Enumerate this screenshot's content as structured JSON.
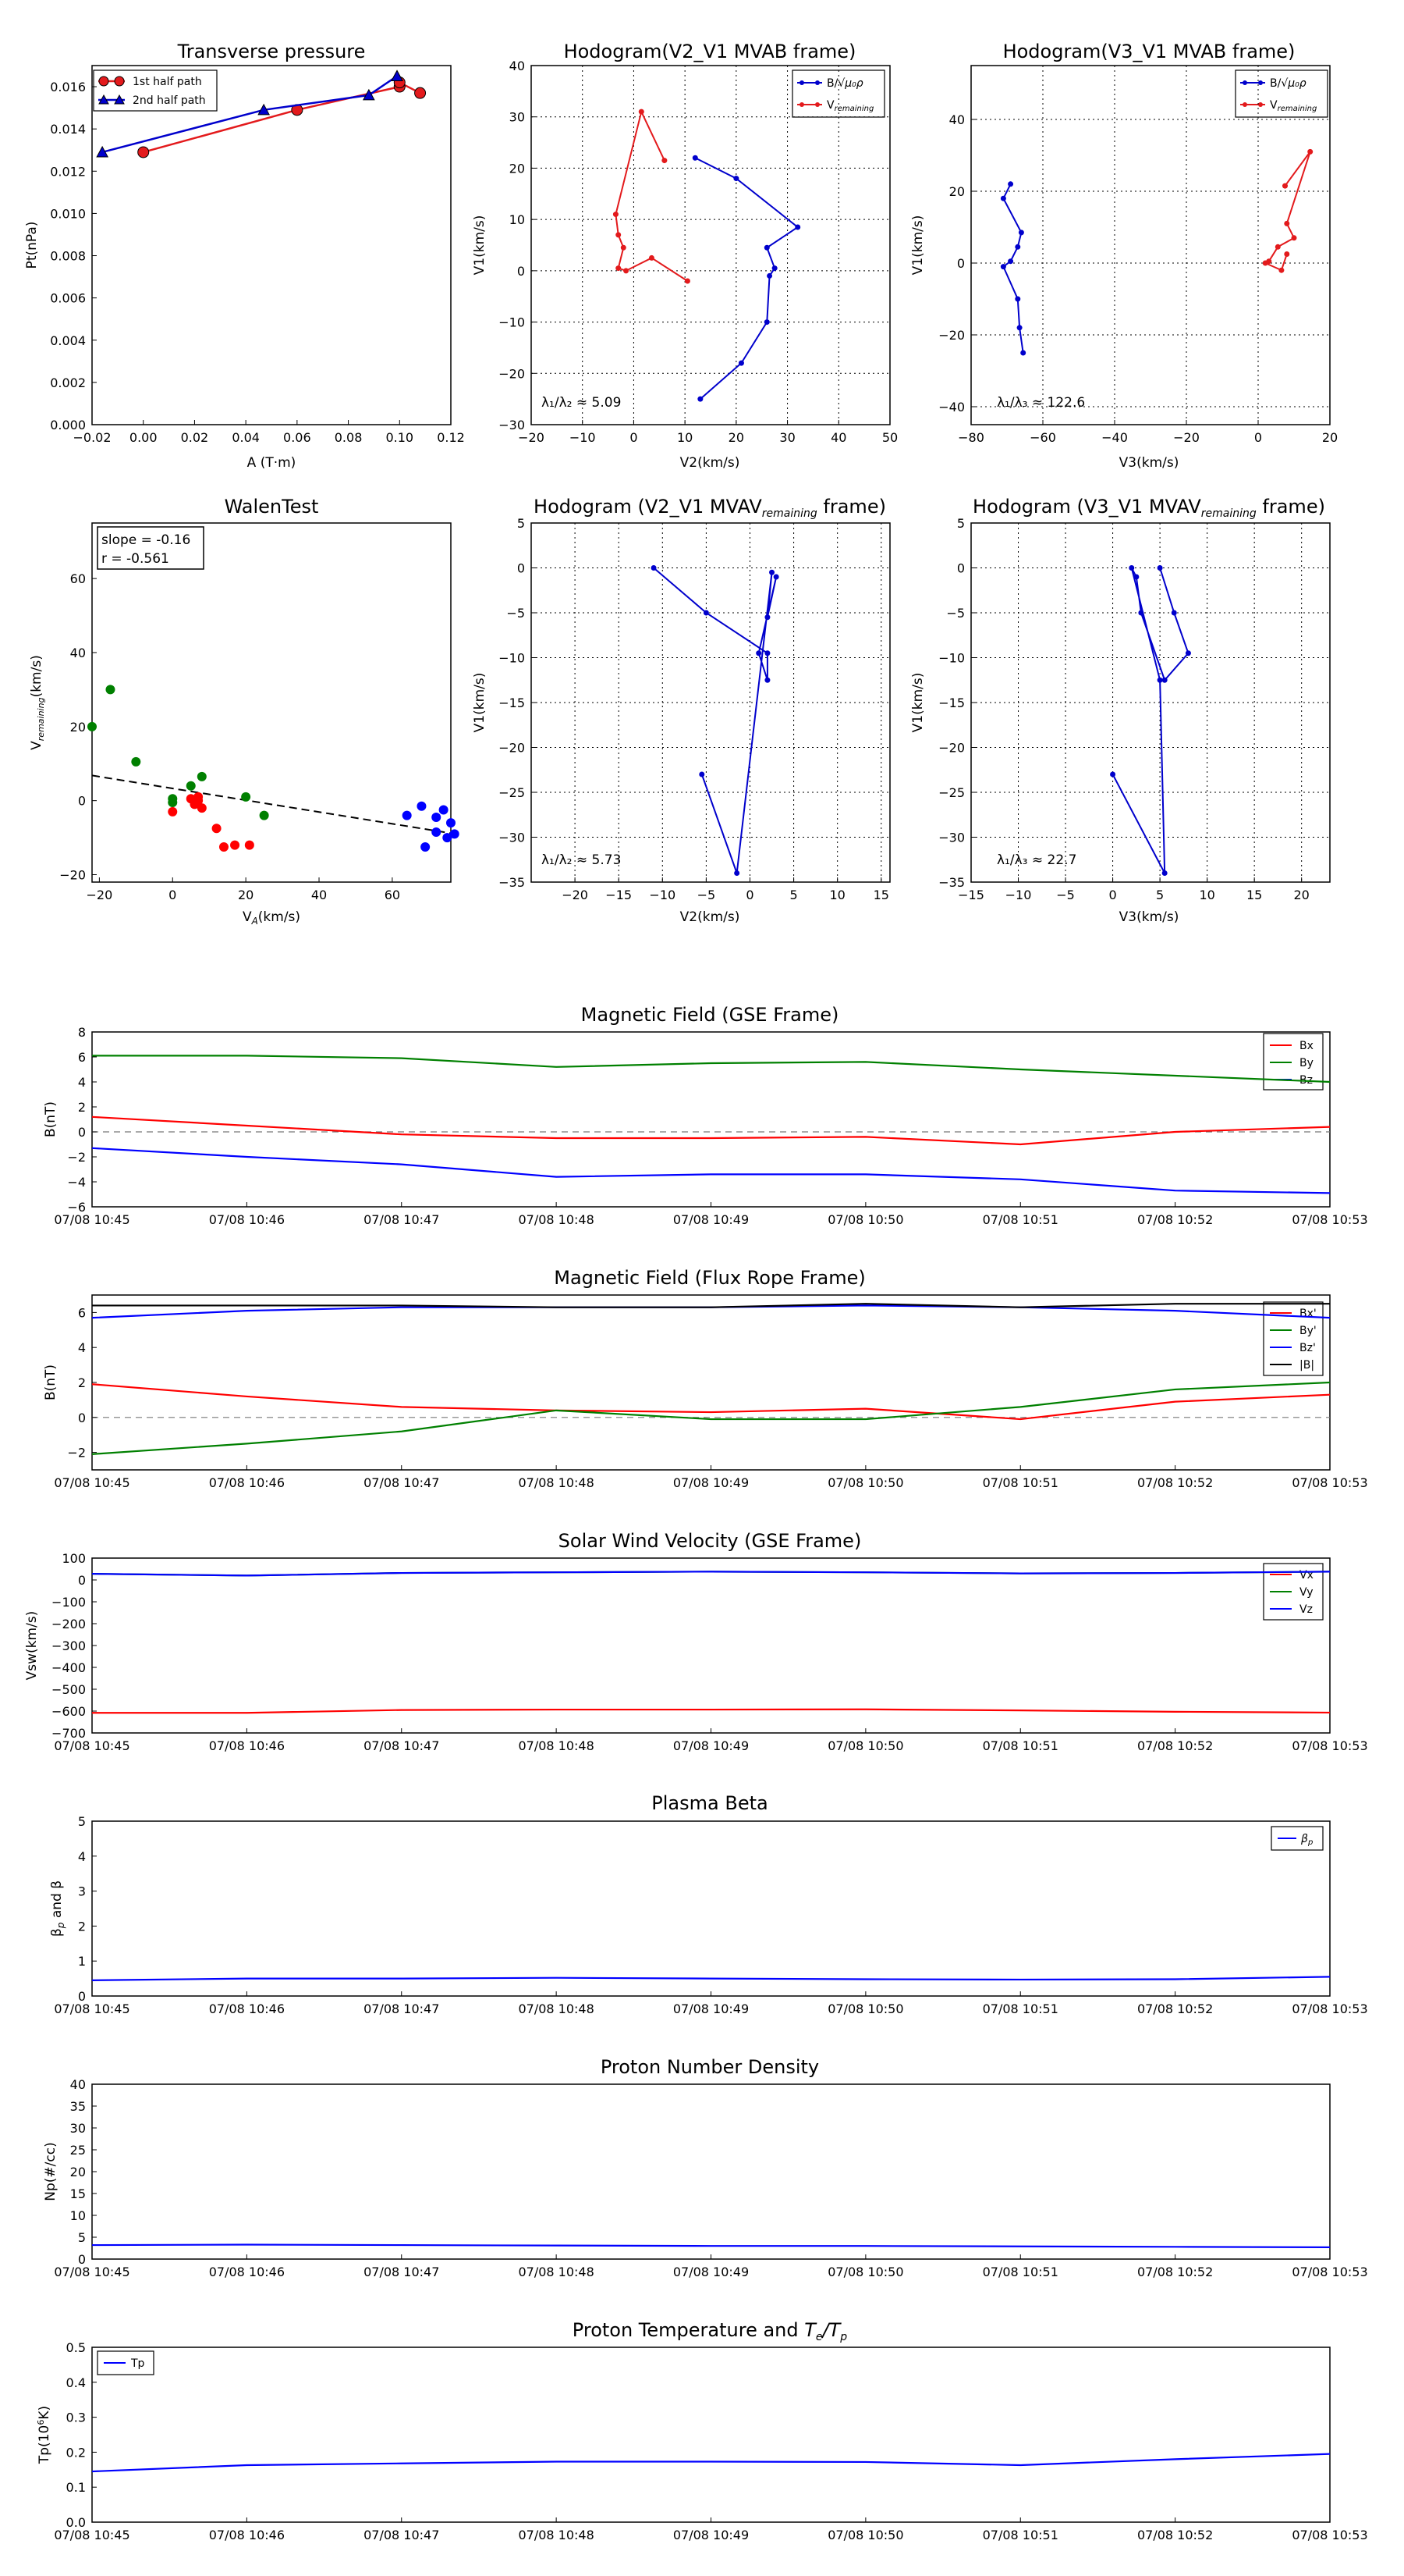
{
  "figure": {
    "background": "#ffffff"
  },
  "panels": {
    "transverse_pressure": {
      "title": "Transverse pressure",
      "xlabel": "A (T·m)",
      "ylabel": "Pt(nPa)",
      "xticks": [
        "−0.02",
        "0.00",
        "0.02",
        "0.04",
        "0.06",
        "0.08",
        "0.10",
        "0.12"
      ],
      "yticks": [
        "0.000",
        "0.002",
        "0.004",
        "0.006",
        "0.008",
        "0.010",
        "0.012",
        "0.014",
        "0.016"
      ],
      "legend": [
        "1st half path",
        "2nd half path"
      ]
    },
    "hodo_v2": {
      "title": "Hodogram(V2_V1 MVAB frame)",
      "xlabel": "V2(km/s)",
      "ylabel": "V1(km/s)",
      "xticks": [
        "−20",
        "−10",
        "0",
        "10",
        "20",
        "30",
        "40",
        "50"
      ],
      "yticks": [
        "−30",
        "−20",
        "−10",
        "0",
        "10",
        "20",
        "30",
        "40"
      ],
      "legend": [
        "B/√μ₀ρ",
        "V_remaining"
      ],
      "annotation": "λ₁/λ₂ ≈ 5.09"
    },
    "hodo_v3": {
      "title": "Hodogram(V3_V1 MVAB frame)",
      "xlabel": "V3(km/s)",
      "ylabel": "V1(km/s)",
      "xticks": [
        "−80",
        "−60",
        "−40",
        "−20",
        "0",
        "20"
      ],
      "yticks": [
        "−40",
        "−20",
        "0",
        "20",
        "40"
      ],
      "legend": [
        "B/√μ₀ρ",
        "V_remaining"
      ],
      "annotation": "λ₁/λ₃ ≈ 122.6"
    },
    "walen": {
      "title": "WalenTest",
      "xlabel": "V_A(km/s)",
      "ylabel": "V_remaining(km/s)",
      "xticks": [
        "−20",
        "0",
        "20",
        "40",
        "60"
      ],
      "yticks": [
        "−20",
        "0",
        "20",
        "40",
        "60"
      ],
      "slope_text": "slope = -0.16",
      "r_text": "r = -0.561"
    },
    "hodo_v2_rem": {
      "title": "Hodogram (V2_V1 MVAV_remaining frame)",
      "xlabel": "V2(km/s)",
      "ylabel": "V1(km/s)",
      "xticks": [
        "−20",
        "−15",
        "−10",
        "−5",
        "0",
        "5",
        "10",
        "15"
      ],
      "yticks": [
        "−35",
        "−30",
        "−25",
        "−20",
        "−15",
        "−10",
        "−5",
        "0",
        "5"
      ],
      "annotation": "λ₁/λ₂ ≈ 5.73"
    },
    "hodo_v3_rem": {
      "title": "Hodogram (V3_V1 MVAV_remaining frame)",
      "xlabel": "V3(km/s)",
      "ylabel": "V1(km/s)",
      "xticks": [
        "−15",
        "−10",
        "−5",
        "0",
        "5",
        "10",
        "15",
        "20"
      ],
      "yticks": [
        "−35",
        "−30",
        "−25",
        "−20",
        "−15",
        "−10",
        "−5",
        "0",
        "5"
      ],
      "annotation": "λ₁/λ₃ ≈ 22.7"
    }
  },
  "time_axis": {
    "ticks": [
      "07/08 10:45",
      "07/08 10:46",
      "07/08 10:47",
      "07/08 10:48",
      "07/08 10:49",
      "07/08 10:50",
      "07/08 10:51",
      "07/08 10:52",
      "07/08 10:53"
    ]
  },
  "timeseries": {
    "mag_gse": {
      "title": "Magnetic Field (GSE Frame)",
      "ylabel": "B(nT)",
      "yticks": [
        "−6",
        "−4",
        "−2",
        "0",
        "2",
        "4",
        "6",
        "8"
      ],
      "legend": [
        "Bx",
        "By",
        "Bz"
      ]
    },
    "mag_fr": {
      "title": "Magnetic Field (Flux Rope Frame)",
      "ylabel": "B(nT)",
      "yticks": [
        "−2",
        "0",
        "2",
        "4",
        "6"
      ],
      "legend": [
        "Bx'",
        "By'",
        "Bz'",
        "|B|"
      ]
    },
    "vsw": {
      "title": "Solar Wind Velocity (GSE Frame)",
      "ylabel": "Vsw(km/s)",
      "yticks": [
        "−700",
        "−600",
        "−500",
        "−400",
        "−300",
        "−200",
        "−100",
        "0",
        "100"
      ],
      "legend": [
        "Vx",
        "Vy",
        "Vz"
      ]
    },
    "beta": {
      "title": "Plasma Beta",
      "ylabel": "βp and β",
      "yticks": [
        "0",
        "1",
        "2",
        "3",
        "4",
        "5"
      ],
      "legend": [
        "βp"
      ]
    },
    "np": {
      "title": "Proton Number Density",
      "ylabel": "Np(#/cc)",
      "yticks": [
        "0",
        "5",
        "10",
        "15",
        "20",
        "25",
        "30",
        "35",
        "40"
      ]
    },
    "tp": {
      "title": "Proton Temperature and Te/Tp",
      "ylabel": "Tp(10⁶K)",
      "yticks": [
        "0.0",
        "0.1",
        "0.2",
        "0.3",
        "0.4",
        "0.5"
      ],
      "legend": [
        "Tp"
      ]
    }
  },
  "chart_data": [
    {
      "type": "line",
      "title": "Transverse pressure",
      "xlabel": "A (T·m)",
      "ylabel": "Pt(nPa)",
      "xlim": [
        -0.02,
        0.12
      ],
      "ylim": [
        0.0,
        0.017
      ],
      "series": [
        {
          "name": "1st half path",
          "color": "#e31a1c",
          "marker": "circle",
          "x": [
            0.0,
            0.06,
            0.1,
            0.1,
            0.108
          ],
          "y": [
            0.0129,
            0.0149,
            0.016,
            0.0162,
            0.0157
          ]
        },
        {
          "name": "2nd half path",
          "color": "#0000cc",
          "marker": "triangle",
          "x": [
            -0.016,
            0.047,
            0.088,
            0.099,
            0.099
          ],
          "y": [
            0.0129,
            0.0149,
            0.0156,
            0.0165,
            0.0165
          ]
        }
      ],
      "legend_position": "top-left"
    },
    {
      "type": "line",
      "title": "Hodogram(V2_V1 MVAB frame)",
      "xlabel": "V2(km/s)",
      "ylabel": "V1(km/s)",
      "xlim": [
        -20,
        50
      ],
      "ylim": [
        -30,
        40
      ],
      "grid": true,
      "series": [
        {
          "name": "B/√μ₀ρ",
          "color": "#0000cc",
          "x": [
            12,
            20,
            32,
            26,
            27.5,
            26.5,
            26,
            21,
            13
          ],
          "y": [
            22,
            18,
            8.5,
            4.5,
            0.5,
            -1,
            -10,
            -18,
            -25
          ]
        },
        {
          "name": "V_remaining",
          "color": "#e31a1c",
          "x": [
            6,
            1.5,
            -3.5,
            -3,
            -2,
            -3,
            -1.5,
            3.5,
            10.5
          ],
          "y": [
            21.5,
            31,
            11,
            7,
            4.5,
            0.5,
            0,
            2.5,
            -2
          ]
        }
      ],
      "legend_position": "top-right",
      "annotation": "λ₁/λ₂ ≈ 5.09"
    },
    {
      "type": "line",
      "title": "Hodogram(V3_V1 MVAB frame)",
      "xlabel": "V3(km/s)",
      "ylabel": "V1(km/s)",
      "xlim": [
        -80,
        20
      ],
      "ylim": [
        -45,
        55
      ],
      "grid": true,
      "series": [
        {
          "name": "B/√μ₀ρ",
          "color": "#0000cc",
          "x": [
            -69,
            -71,
            -66,
            -67,
            -69,
            -71,
            -67,
            -66.5,
            -65.5
          ],
          "y": [
            22,
            18,
            8.5,
            4.5,
            0.5,
            -1,
            -10,
            -18,
            -25
          ]
        },
        {
          "name": "V_remaining",
          "color": "#e31a1c",
          "x": [
            7.5,
            14.5,
            8,
            10,
            5.5,
            3,
            2,
            6.5,
            8
          ],
          "y": [
            21.5,
            31,
            11,
            7,
            4.5,
            0.5,
            0,
            -2,
            2.5
          ]
        }
      ],
      "legend_position": "top-right",
      "annotation": "λ₁/λ₃ ≈ 122.6"
    },
    {
      "type": "scatter",
      "title": "WalenTest",
      "xlabel": "V_A(km/s)",
      "ylabel": "V_remaining(km/s)",
      "xlim": [
        -22,
        76
      ],
      "ylim": [
        -22,
        75
      ],
      "series": [
        {
          "name": "",
          "color": "#008000",
          "x": [
            -22,
            -17,
            -10,
            0,
            0,
            5,
            8,
            20,
            25
          ],
          "y": [
            20,
            30,
            10.5,
            0.5,
            -0.5,
            4,
            6.5,
            1,
            -4
          ]
        },
        {
          "name": "",
          "color": "#ff0000",
          "x": [
            0,
            5,
            6,
            7,
            7,
            8,
            12,
            14,
            17,
            21
          ],
          "y": [
            -3,
            0.5,
            -1,
            1,
            0,
            -2,
            -7.5,
            -12.5,
            -12,
            -12
          ]
        },
        {
          "name": "",
          "color": "#0000ff",
          "x": [
            64,
            68,
            69,
            72,
            72,
            74,
            75,
            76,
            77
          ],
          "y": [
            -4,
            -1.5,
            -12.5,
            -4.5,
            -8.5,
            -2.5,
            -10,
            -6,
            -9
          ]
        }
      ],
      "fit_line": {
        "x": [
          -22,
          76
        ],
        "y": [
          6.8,
          -8.8
        ],
        "style": "dashed"
      },
      "annotations": [
        "slope = -0.16",
        "r = -0.561"
      ]
    },
    {
      "type": "line",
      "title": "Hodogram (V2_V1 MVAV_remaining frame)",
      "xlabel": "V2(km/s)",
      "ylabel": "V1(km/s)",
      "xlim": [
        -25,
        16
      ],
      "ylim": [
        -35,
        5
      ],
      "grid": true,
      "series": [
        {
          "name": "",
          "color": "#0000cc",
          "x": [
            -11,
            -5,
            2,
            2,
            1,
            3,
            2,
            2.5,
            -1.5,
            -5.5
          ],
          "y": [
            0,
            -5,
            -9.5,
            -12.5,
            -9.5,
            -1,
            -5.5,
            -0.5,
            -34,
            -23
          ]
        }
      ],
      "annotation": "λ₁/λ₂ ≈ 5.73"
    },
    {
      "type": "line",
      "title": "Hodogram (V3_V1 MVAV_remaining frame)",
      "xlabel": "V3(km/s)",
      "ylabel": "V1(km/s)",
      "xlim": [
        -15,
        23
      ],
      "ylim": [
        -35,
        5
      ],
      "grid": true,
      "series": [
        {
          "name": "",
          "color": "#0000cc",
          "x": [
            5,
            6.5,
            8,
            5.5,
            3,
            2.5,
            2,
            5,
            5.5,
            0
          ],
          "y": [
            0,
            -5,
            -9.5,
            -12.5,
            -5,
            -1,
            0,
            -12.5,
            -34,
            -23
          ]
        }
      ],
      "annotation": "λ₁/λ₃ ≈ 22.7"
    },
    {
      "type": "line",
      "title": "Magnetic Field (GSE Frame)",
      "x": [
        "10:45",
        "10:46",
        "10:47",
        "10:48",
        "10:49",
        "10:50",
        "10:51",
        "10:52",
        "10:53"
      ],
      "ylabel": "B(nT)",
      "ylim": [
        -6,
        8
      ],
      "series": [
        {
          "name": "Bx",
          "color": "#ff0000",
          "values": [
            1.2,
            0.5,
            -0.2,
            -0.5,
            -0.5,
            -0.4,
            -1.0,
            0.0,
            0.4
          ]
        },
        {
          "name": "By",
          "color": "#008000",
          "values": [
            6.1,
            6.1,
            5.9,
            5.2,
            5.5,
            5.6,
            5.0,
            4.5,
            4.0
          ]
        },
        {
          "name": "Bz",
          "color": "#0000ff",
          "values": [
            -1.3,
            -2.0,
            -2.6,
            -3.6,
            -3.4,
            -3.4,
            -3.8,
            -4.7,
            -4.9
          ]
        }
      ],
      "legend_position": "top-right"
    },
    {
      "type": "line",
      "title": "Magnetic Field (Flux Rope Frame)",
      "x": [
        "10:45",
        "10:46",
        "10:47",
        "10:48",
        "10:49",
        "10:50",
        "10:51",
        "10:52",
        "10:53"
      ],
      "ylabel": "B(nT)",
      "ylim": [
        -3,
        7
      ],
      "series": [
        {
          "name": "Bx'",
          "color": "#ff0000",
          "values": [
            1.9,
            1.2,
            0.6,
            0.4,
            0.3,
            0.5,
            -0.1,
            0.9,
            1.3
          ]
        },
        {
          "name": "By'",
          "color": "#008000",
          "values": [
            -2.1,
            -1.5,
            -0.8,
            0.4,
            -0.1,
            -0.1,
            0.6,
            1.6,
            2.0
          ]
        },
        {
          "name": "Bz'",
          "color": "#0000ff",
          "values": [
            5.7,
            6.1,
            6.3,
            6.3,
            6.3,
            6.4,
            6.3,
            6.1,
            5.7
          ]
        },
        {
          "name": "|B|",
          "color": "#000000",
          "values": [
            6.4,
            6.4,
            6.4,
            6.3,
            6.3,
            6.5,
            6.3,
            6.5,
            6.5
          ]
        }
      ],
      "legend_position": "right"
    },
    {
      "type": "line",
      "title": "Solar Wind Velocity (GSE Frame)",
      "x": [
        "10:45",
        "10:46",
        "10:47",
        "10:48",
        "10:49",
        "10:50",
        "10:51",
        "10:52",
        "10:53"
      ],
      "ylabel": "Vsw(km/s)",
      "ylim": [
        -700,
        100
      ],
      "series": [
        {
          "name": "Vx",
          "color": "#ff0000",
          "values": [
            -608,
            -608,
            -595,
            -593,
            -593,
            -592,
            -597,
            -603,
            -607
          ]
        },
        {
          "name": "Vy",
          "color": "#008000",
          "values": [
            28,
            20,
            32,
            35,
            38,
            35,
            30,
            32,
            38
          ]
        },
        {
          "name": "Vz",
          "color": "#0000ff",
          "values": [
            28,
            20,
            32,
            35,
            38,
            35,
            30,
            32,
            38
          ]
        }
      ],
      "legend_position": "top-right"
    },
    {
      "type": "line",
      "title": "Plasma Beta",
      "x": [
        "10:45",
        "10:46",
        "10:47",
        "10:48",
        "10:49",
        "10:50",
        "10:51",
        "10:52",
        "10:53"
      ],
      "ylabel": "βp and β",
      "ylim": [
        0,
        5
      ],
      "series": [
        {
          "name": "βp",
          "color": "#0000ff",
          "values": [
            0.45,
            0.5,
            0.5,
            0.52,
            0.5,
            0.48,
            0.47,
            0.48,
            0.55
          ]
        }
      ],
      "legend_position": "top-right"
    },
    {
      "type": "line",
      "title": "Proton Number Density",
      "x": [
        "10:45",
        "10:46",
        "10:47",
        "10:48",
        "10:49",
        "10:50",
        "10:51",
        "10:52",
        "10:53"
      ],
      "ylabel": "Np(#/cc)",
      "ylim": [
        0,
        40
      ],
      "series": [
        {
          "name": "",
          "color": "#0000ff",
          "values": [
            3.2,
            3.3,
            3.2,
            3.1,
            3.0,
            3.0,
            2.9,
            2.8,
            2.7
          ]
        }
      ]
    },
    {
      "type": "line",
      "title": "Proton Temperature and Te/Tp",
      "x": [
        "10:45",
        "10:46",
        "10:47",
        "10:48",
        "10:49",
        "10:50",
        "10:51",
        "10:52",
        "10:53"
      ],
      "ylabel": "Tp(10⁶K)",
      "ylim": [
        0,
        0.5
      ],
      "series": [
        {
          "name": "Tp",
          "color": "#0000ff",
          "values": [
            0.145,
            0.163,
            0.168,
            0.173,
            0.173,
            0.172,
            0.163,
            0.18,
            0.195
          ]
        }
      ],
      "legend_position": "top-left"
    }
  ]
}
